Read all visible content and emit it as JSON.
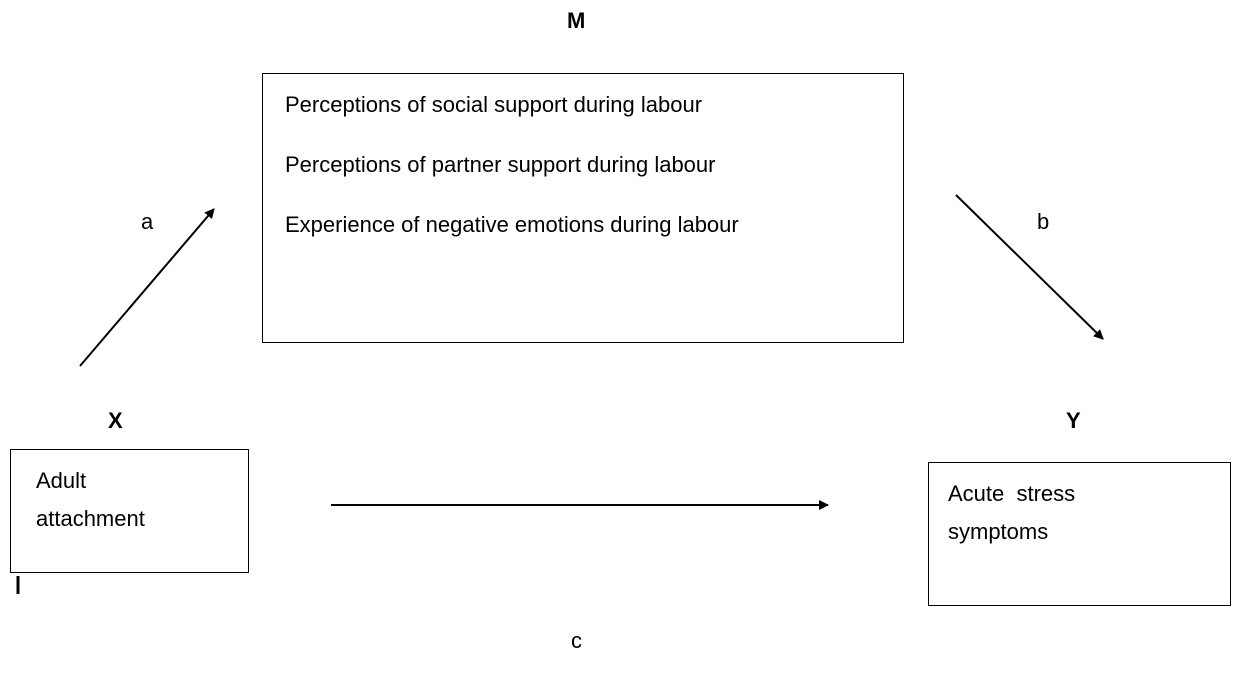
{
  "labels": {
    "m": "M",
    "x": "X",
    "y": "Y"
  },
  "nodes": [
    {
      "id": "X",
      "label": "Adult attachment"
    },
    {
      "id": "M",
      "lines": [
        "Perceptions of social support during labour",
        "Perceptions of partner support during labour",
        "Experience of negative emotions during labour"
      ]
    },
    {
      "id": "Y",
      "label": "Acute  stress symptoms"
    }
  ],
  "paths": {
    "a": "a",
    "b": "b",
    "c": "c"
  }
}
